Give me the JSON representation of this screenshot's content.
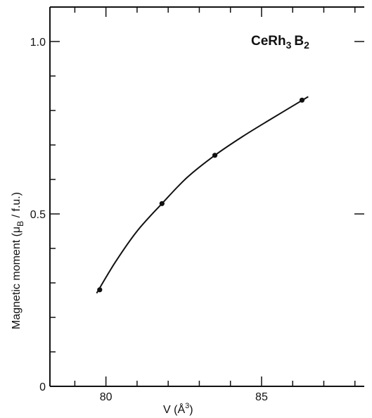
{
  "chart_data": {
    "type": "line",
    "title": "CeRh3B2",
    "title_parts": {
      "ce": "Ce",
      "rh": "Rh",
      "rh_sub": "3",
      "b": "B",
      "b_sub": "2"
    },
    "xlabel": "V (Å³)",
    "xlabel_parts": {
      "prefix": "V  (Å",
      "sup": "3",
      "suffix": ")"
    },
    "ylabel": "Magnetic moment (μB / f.u.)",
    "ylabel_parts": {
      "prefix": "Magnetic moment (",
      "mu": "μ",
      "sub": "B",
      "suffix": " / f.u.)"
    },
    "xlim": [
      78.2,
      88.3
    ],
    "ylim": [
      0,
      1.1
    ],
    "x_ticks": [
      80,
      85
    ],
    "x_tick_labels": [
      "80",
      "85"
    ],
    "x_minor_ticks": [
      79,
      81,
      82,
      83,
      84,
      86,
      87,
      88
    ],
    "y_ticks": [
      0,
      0.5,
      1.0
    ],
    "y_tick_labels": [
      "0",
      "0.5",
      "1.0"
    ],
    "y_minor_ticks": [
      0.1,
      0.2,
      0.3,
      0.4,
      0.6,
      0.7,
      0.8,
      0.9
    ],
    "grid": false,
    "series": [
      {
        "x": [
          79.8,
          81.8,
          83.5,
          86.3
        ],
        "y": [
          0.28,
          0.53,
          0.67,
          0.83
        ]
      }
    ],
    "fit_curve": {
      "x": [
        79.7,
        80.3,
        81.0,
        81.8,
        82.6,
        83.5,
        84.4,
        85.3,
        86.5
      ],
      "y": [
        0.27,
        0.36,
        0.45,
        0.53,
        0.605,
        0.67,
        0.725,
        0.775,
        0.84
      ]
    }
  }
}
